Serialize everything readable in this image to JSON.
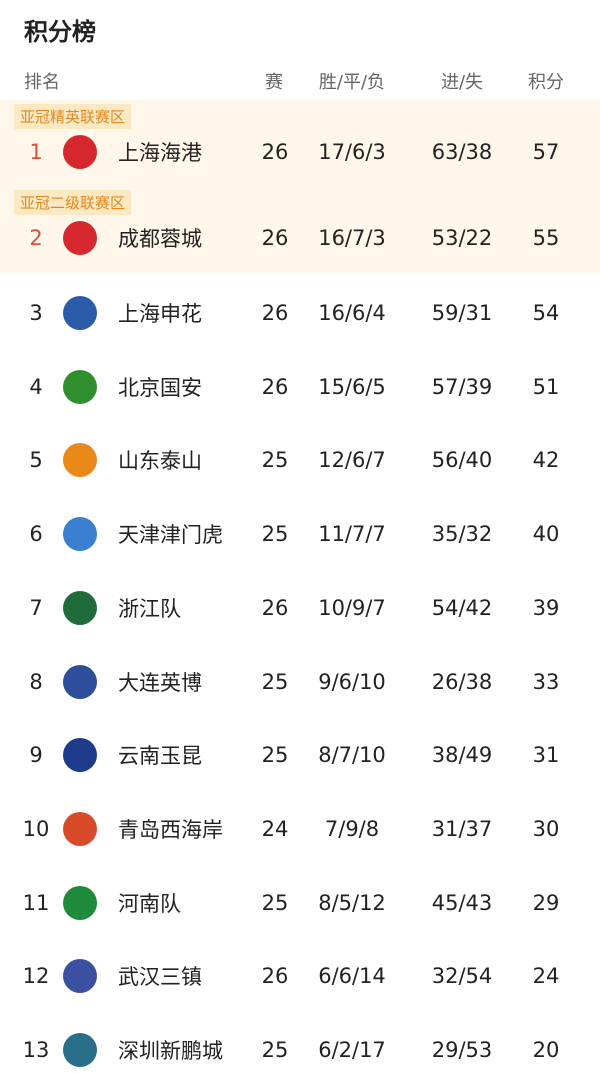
{
  "header": {
    "title": "积分榜"
  },
  "table": {
    "columns": [
      "排名",
      "赛",
      "胜/平/负",
      "进/失",
      "积分"
    ],
    "zones": [
      "亚冠精英联赛区",
      "亚冠二级联赛区"
    ],
    "rows": [
      [
        1,
        "上海海港",
        26,
        "17/6/3",
        "63/38",
        57
      ],
      [
        2,
        "成都蓉城",
        26,
        "16/7/3",
        "53/22",
        55
      ],
      [
        3,
        "上海申花",
        26,
        "16/6/4",
        "59/31",
        54
      ],
      [
        4,
        "北京国安",
        26,
        "15/6/5",
        "57/39",
        51
      ],
      [
        5,
        "山东泰山",
        25,
        "12/6/7",
        "56/40",
        42
      ],
      [
        6,
        "天津津门虎",
        25,
        "11/7/7",
        "35/32",
        40
      ],
      [
        7,
        "浙江队",
        26,
        "10/9/7",
        "54/42",
        39
      ],
      [
        8,
        "大连英博",
        25,
        "9/6/10",
        "26/38",
        33
      ],
      [
        9,
        "云南玉昆",
        25,
        "8/7/10",
        "38/49",
        31
      ],
      [
        10,
        "青岛西海岸",
        24,
        "7/9/8",
        "31/37",
        30
      ],
      [
        11,
        "河南队",
        25,
        "8/5/12",
        "45/43",
        29
      ],
      [
        12,
        "武汉三镇",
        26,
        "6/6/14",
        "32/54",
        24
      ],
      [
        13,
        "深圳新鹏城",
        25,
        "6/2/17",
        "29/53",
        20
      ]
    ]
  }
}
